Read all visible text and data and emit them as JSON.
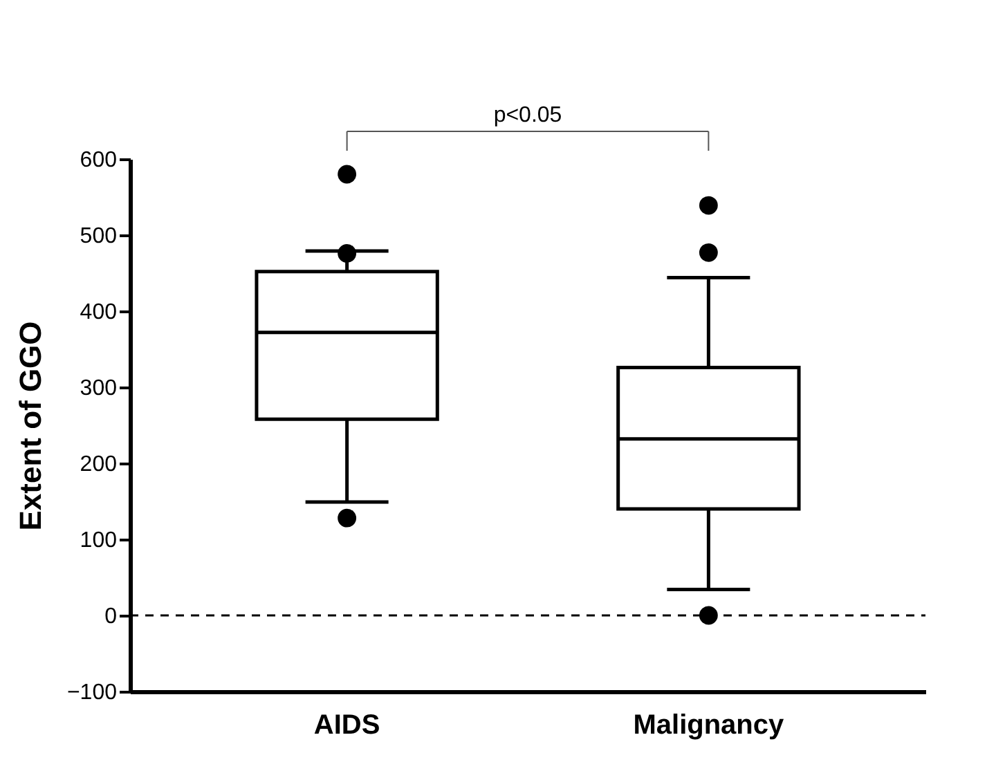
{
  "chart_data": {
    "type": "box",
    "ylabel": "Extent of GGO",
    "categories": [
      "AIDS",
      "Malignancy"
    ],
    "boxes": [
      {
        "low": 149,
        "q1": 258,
        "median": 372,
        "q3": 452,
        "high": 479,
        "outliers": [
          580,
          476,
          128
        ]
      },
      {
        "low": 34,
        "q1": 140,
        "median": 232,
        "q3": 326,
        "high": 444,
        "outliers": [
          539,
          477,
          0
        ]
      }
    ],
    "ylim": [
      -100,
      600
    ],
    "yticks": [
      -100,
      0,
      100,
      200,
      300,
      400,
      500,
      600
    ],
    "ref_lines": [
      {
        "axis": "y",
        "value": 0,
        "color": "#000000",
        "line_style": "dashed"
      }
    ],
    "annotations": [
      "p<0.05"
    ],
    "grid": false
  }
}
